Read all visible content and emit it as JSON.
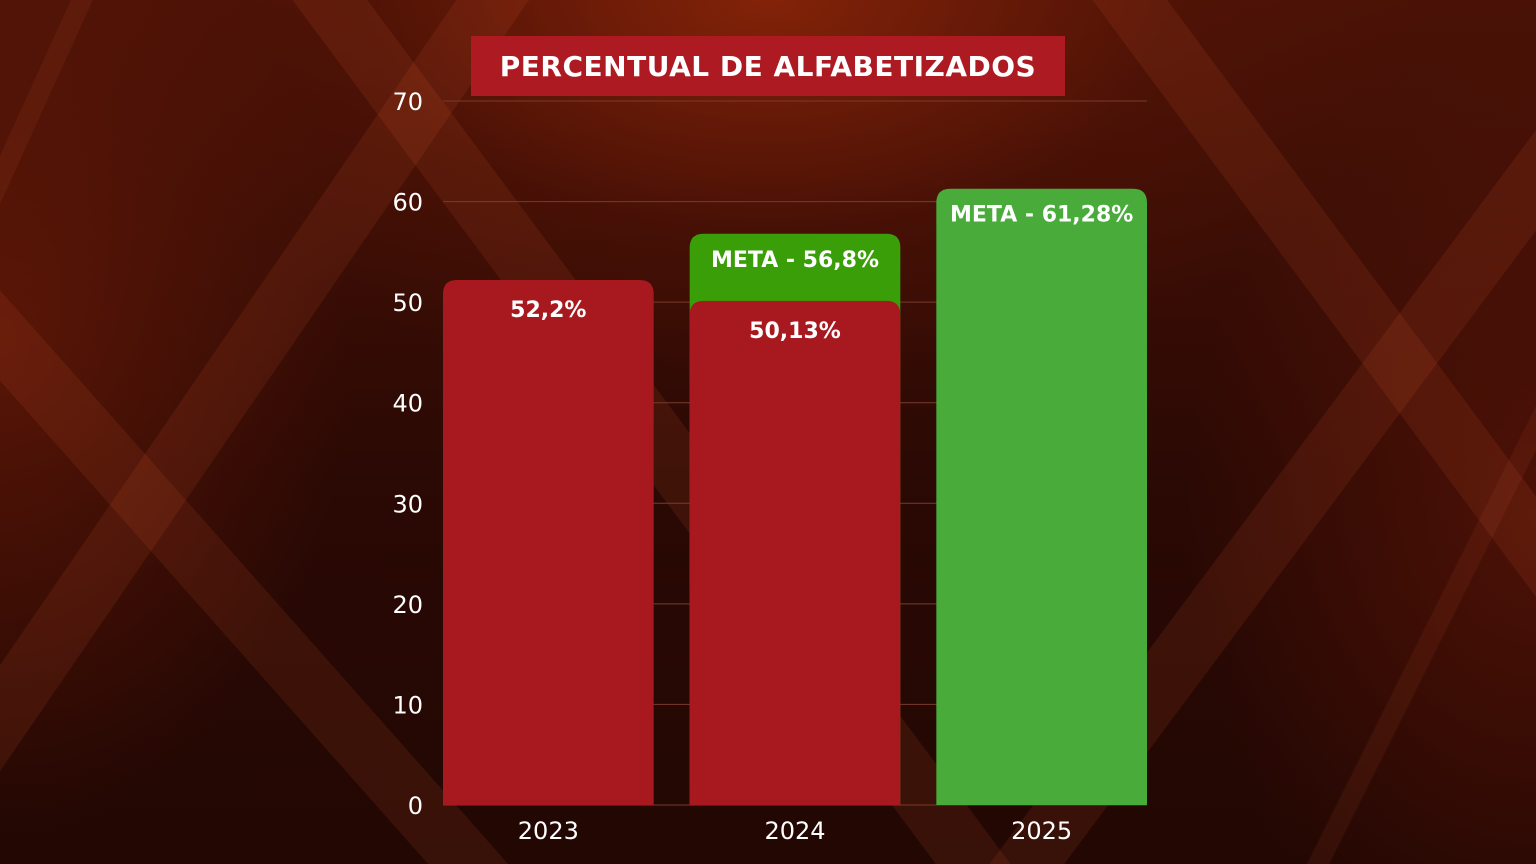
{
  "chart_data": {
    "type": "bar",
    "title": "PERCENTUAL DE ALFABETIZADOS",
    "xlabel": "",
    "ylabel": "",
    "ylim": [
      0,
      70
    ],
    "yticks": [
      0,
      10,
      20,
      30,
      40,
      50,
      60,
      70
    ],
    "grid": true,
    "categories": [
      "2023",
      "2024",
      "2025"
    ],
    "series": [
      {
        "values": [
          52.2,
          50.13,
          null
        ],
        "labels": [
          "52,2%",
          "50,13%",
          ""
        ]
      },
      {
        "values": [
          null,
          56.8,
          61.28
        ],
        "labels": [
          "",
          "META - 56,8%",
          "META - 61,28%"
        ]
      }
    ],
    "colors": {
      "actual": "#a8191f",
      "meta_2024": "#3a9e08",
      "meta_2025": "#48ab3a",
      "title_bg": "#ad1a22",
      "grid": "#7a3a2c"
    }
  }
}
